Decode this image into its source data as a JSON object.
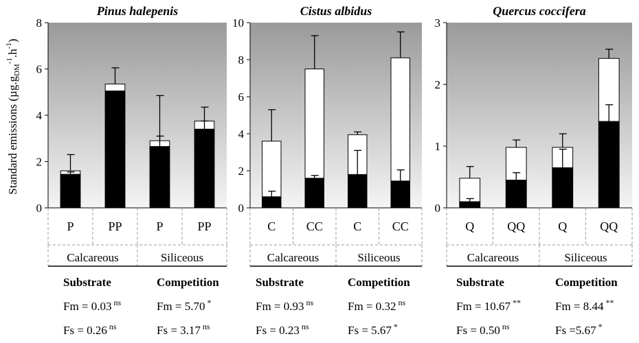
{
  "ylabel_main": "Standard emissions  (µg.g",
  "ylabel_sub": "DM",
  "ylabel_sup1": "-1",
  "ylabel_mid": ".h",
  "ylabel_sup2": "-1",
  "ylabel_end": ")",
  "colors": {
    "black_segment": "#000000",
    "white_segment": "#ffffff",
    "background_top": "#9a9a9a",
    "background_bottom": "#f4f4f4",
    "dashed_divider": "#9a9a9a"
  },
  "chart_data": [
    {
      "type": "bar",
      "stacked": true,
      "title": "Pinus halepenis",
      "categories": [
        "P",
        "PP",
        "P",
        "PP"
      ],
      "groups": [
        "Calcareous",
        "Siliceous"
      ],
      "ylim": [
        0,
        8
      ],
      "yticks": [
        "0",
        "2",
        "4",
        "6",
        "8"
      ],
      "ytick_values": [
        0,
        2,
        4,
        6,
        8
      ],
      "black_values": [
        1.45,
        5.05,
        2.65,
        3.4
      ],
      "total_values": [
        1.6,
        5.35,
        2.9,
        3.75
      ],
      "black_error": [
        1.55,
        0,
        3.1,
        3.75
      ],
      "total_error": [
        2.3,
        6.05,
        4.85,
        4.35
      ],
      "grid": false
    },
    {
      "type": "bar",
      "stacked": true,
      "title": "Cistus albidus",
      "categories": [
        "C",
        "CC",
        "C",
        "CC"
      ],
      "groups": [
        "Calcareous",
        "Siliceous"
      ],
      "ylim": [
        0,
        10
      ],
      "yticks": [
        "0",
        "2",
        "4",
        "6",
        "8",
        "10"
      ],
      "ytick_values": [
        0,
        2,
        4,
        6,
        8,
        10
      ],
      "black_values": [
        0.6,
        1.6,
        1.8,
        1.45
      ],
      "total_values": [
        3.6,
        7.5,
        3.95,
        8.1
      ],
      "black_error": [
        0.9,
        1.75,
        3.1,
        2.05
      ],
      "total_error": [
        5.3,
        9.3,
        4.1,
        9.5
      ],
      "grid": false
    },
    {
      "type": "bar",
      "stacked": true,
      "title": "Quercus coccifera",
      "categories": [
        "Q",
        "QQ",
        "Q",
        "QQ"
      ],
      "groups": [
        "Calcareous",
        "Siliceous"
      ],
      "ylim": [
        0,
        3
      ],
      "yticks": [
        "0",
        "1",
        "2",
        "3"
      ],
      "ytick_values": [
        0,
        1,
        2,
        3
      ],
      "black_values": [
        0.1,
        0.45,
        0.65,
        1.4
      ],
      "total_values": [
        0.48,
        0.98,
        0.98,
        2.42
      ],
      "black_error": [
        0.15,
        0.57,
        0.95,
        1.67
      ],
      "total_error": [
        0.67,
        1.1,
        1.2,
        2.57
      ],
      "grid": false
    }
  ],
  "stats": [
    {
      "substrate_label": "Substrate",
      "competition_label": "Competition",
      "fm_sub": "Fm = 0.03",
      "fm_sub_sig": "ns",
      "fs_sub": "Fs = 0.26",
      "fs_sub_sig": "ns",
      "fm_comp": "Fm = 5.70",
      "fm_comp_sig": "*",
      "fs_comp": "Fs = 3.17",
      "fs_comp_sig": "ns"
    },
    {
      "substrate_label": "Substrate",
      "competition_label": "Competition",
      "fm_sub": "Fm = 0.93",
      "fm_sub_sig": "ns",
      "fs_sub": "Fs = 0.23",
      "fs_sub_sig": "ns",
      "fm_comp": "Fm = 0.32",
      "fm_comp_sig": "ns",
      "fs_comp": "Fs = 5.67",
      "fs_comp_sig": "*"
    },
    {
      "substrate_label": "Substrate",
      "competition_label": "Competition",
      "fm_sub": "Fm = 10.67",
      "fm_sub_sig": "**",
      "fs_sub": "Fs = 0.50",
      "fs_sub_sig": "ns",
      "fm_comp": "Fm = 8.44",
      "fm_comp_sig": "**",
      "fs_comp": "Fs =5.67",
      "fs_comp_sig": "*"
    }
  ]
}
